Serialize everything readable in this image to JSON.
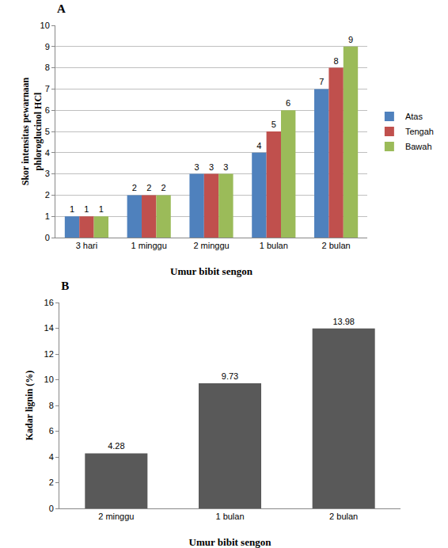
{
  "chart_data": [
    {
      "type": "bar",
      "title": "A",
      "categories": [
        "3 hari",
        "1 minggu",
        "2 minggu",
        "1 bulan",
        "2 bulan"
      ],
      "series": [
        {
          "name": "Atas",
          "color": "#4f81bd",
          "values": [
            1,
            2,
            3,
            4,
            7
          ]
        },
        {
          "name": "Tengah",
          "color": "#c0504d",
          "values": [
            1,
            2,
            3,
            5,
            8
          ]
        },
        {
          "name": "Bawah",
          "color": "#9bbb59",
          "values": [
            1,
            2,
            3,
            6,
            9
          ]
        }
      ],
      "x_label": "Umur bibit sengon",
      "y_label": "Skor intensitas pewarnaan phloroglucinol HCl",
      "ylim": [
        0,
        10
      ],
      "yticks": [
        0,
        1,
        2,
        3,
        4,
        5,
        6,
        7,
        8,
        9,
        10
      ],
      "grid": true,
      "legend": "right",
      "data_labels": true
    },
    {
      "type": "bar",
      "title": "B",
      "categories": [
        "2 minggu",
        "1 bulan",
        "2 bulan"
      ],
      "values": [
        4.28,
        9.73,
        13.98
      ],
      "color": "#595959",
      "x_label": "Umur bibit sengon",
      "y_label": "Kadar lignin (%)",
      "ylim": [
        0,
        16
      ],
      "yticks": [
        0,
        2,
        4,
        6,
        8,
        10,
        12,
        14,
        16
      ],
      "grid": false,
      "data_labels": true
    }
  ]
}
